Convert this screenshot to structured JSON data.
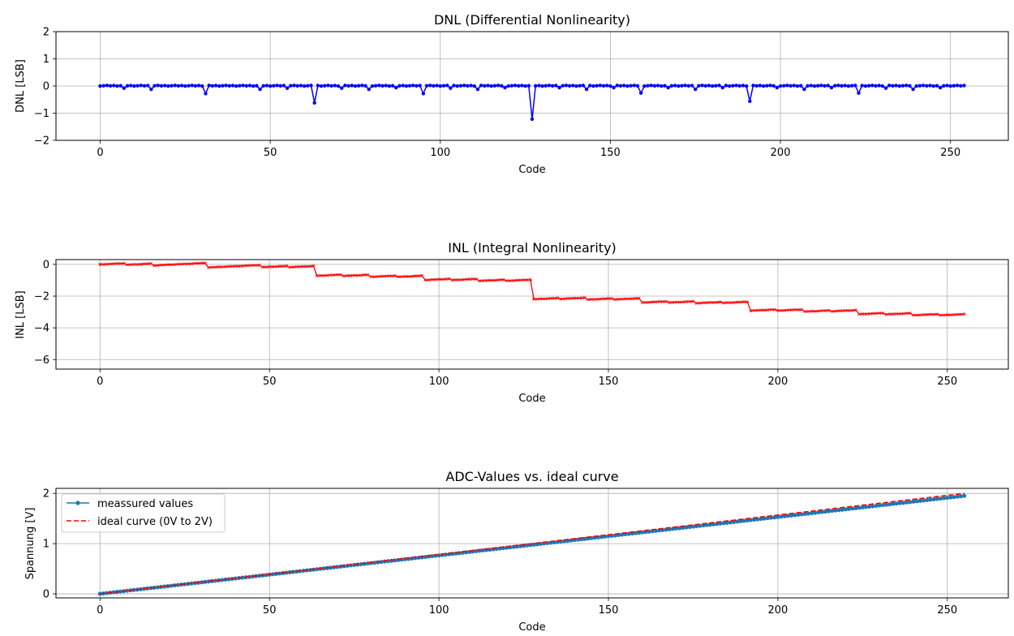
{
  "chart_data": [
    {
      "type": "line",
      "title": "DNL (Differential Nonlinearity)",
      "xlabel": "Code",
      "ylabel": "DNL [LSB]",
      "xlim": [
        -13,
        267
      ],
      "ylim": [
        -2,
        2
      ],
      "xticks": [
        0,
        50,
        100,
        150,
        200,
        250
      ],
      "yticks": [
        -2,
        -1,
        0,
        1,
        2
      ],
      "grid": true,
      "x_range": [
        0,
        254
      ],
      "baseline": 0.01,
      "series": [
        {
          "color": "#0000ff",
          "marker": "dot",
          "spikes": [
            {
              "code": 7,
              "value": -0.08
            },
            {
              "code": 15,
              "value": -0.12
            },
            {
              "code": 31,
              "value": -0.28
            },
            {
              "code": 47,
              "value": -0.12
            },
            {
              "code": 55,
              "value": -0.08
            },
            {
              "code": 63,
              "value": -0.62
            },
            {
              "code": 71,
              "value": -0.08
            },
            {
              "code": 79,
              "value": -0.12
            },
            {
              "code": 87,
              "value": -0.06
            },
            {
              "code": 95,
              "value": -0.28
            },
            {
              "code": 103,
              "value": -0.08
            },
            {
              "code": 111,
              "value": -0.12
            },
            {
              "code": 119,
              "value": -0.06
            },
            {
              "code": 127,
              "value": -1.22
            },
            {
              "code": 135,
              "value": -0.06
            },
            {
              "code": 143,
              "value": -0.12
            },
            {
              "code": 151,
              "value": -0.06
            },
            {
              "code": 159,
              "value": -0.26
            },
            {
              "code": 167,
              "value": -0.06
            },
            {
              "code": 175,
              "value": -0.12
            },
            {
              "code": 183,
              "value": -0.06
            },
            {
              "code": 191,
              "value": -0.56
            },
            {
              "code": 199,
              "value": -0.06
            },
            {
              "code": 207,
              "value": -0.12
            },
            {
              "code": 215,
              "value": -0.06
            },
            {
              "code": 223,
              "value": -0.26
            },
            {
              "code": 231,
              "value": -0.08
            },
            {
              "code": 239,
              "value": -0.12
            },
            {
              "code": 247,
              "value": -0.06
            }
          ]
        }
      ]
    },
    {
      "type": "line",
      "title": "INL (Integral Nonlinearity)",
      "xlabel": "Code",
      "ylabel": "INL [LSB]",
      "xlim": [
        -13,
        268
      ],
      "ylim": [
        -6.6,
        0.3
      ],
      "xticks": [
        0,
        50,
        100,
        150,
        200,
        250
      ],
      "yticks": [
        -6,
        -4,
        -2,
        0
      ],
      "ytick_labels": [
        "−6",
        "−4",
        "−2",
        "0"
      ],
      "grid": true,
      "x_range": [
        0,
        255
      ],
      "series": [
        {
          "color": "#ff0000",
          "marker": "x",
          "description_note": "",
          "cumulative_of": 0
        }
      ]
    },
    {
      "type": "line",
      "title": "ADC-Values vs. ideal curve",
      "xlabel": "Code",
      "ylabel": "Spannung [V]",
      "xlim": [
        -13,
        268
      ],
      "ylim": [
        -0.08,
        2.1
      ],
      "xticks": [
        0,
        50,
        100,
        150,
        200,
        250
      ],
      "yticks": [
        0,
        1,
        2
      ],
      "grid": true,
      "legend_position": "top-left",
      "series": [
        {
          "name": "meassured values",
          "color": "#1f77b4",
          "style": "solid-dots",
          "x_range": [
            0,
            255
          ],
          "y_range": [
            0,
            1.95
          ]
        },
        {
          "name": "ideal curve (0V to 2V)",
          "color": "#ff0000",
          "style": "dashed",
          "x_range": [
            0,
            255
          ],
          "y_range": [
            0,
            2.0
          ]
        }
      ]
    }
  ]
}
